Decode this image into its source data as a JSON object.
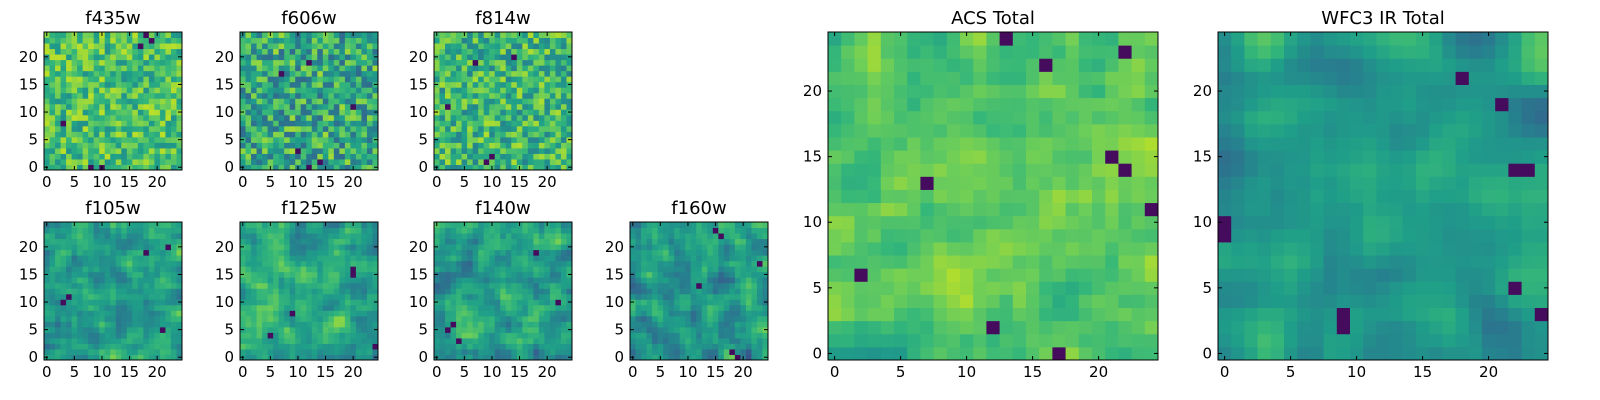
{
  "colors": {
    "colormap": "viridis",
    "background": "#ffffff",
    "frame": "#000000"
  },
  "chart_data": [
    {
      "type": "heatmap",
      "title": "f435w",
      "grid": false,
      "xlim": [
        -0.5,
        24.5
      ],
      "ylim": [
        -0.5,
        24.5
      ],
      "xticks": [
        "0",
        "5",
        "10",
        "15",
        "20"
      ],
      "yticks": [
        "0",
        "5",
        "10",
        "15",
        "20"
      ],
      "size": 25,
      "mean": 0.7,
      "spread": 0.2,
      "smooth": 0,
      "seed": 11,
      "dark_spots": [
        [
          19,
          23
        ],
        [
          18,
          24
        ],
        [
          17,
          22
        ],
        [
          3,
          8
        ],
        [
          10,
          0
        ],
        [
          8,
          0
        ]
      ]
    },
    {
      "type": "heatmap",
      "title": "f606w",
      "grid": false,
      "xlim": [
        -0.5,
        24.5
      ],
      "ylim": [
        -0.5,
        24.5
      ],
      "xticks": [
        "0",
        "5",
        "10",
        "15",
        "20"
      ],
      "yticks": [
        "0",
        "5",
        "10",
        "15",
        "20"
      ],
      "size": 25,
      "mean": 0.6,
      "spread": 0.26,
      "smooth": 0,
      "seed": 23,
      "dark_spots": [
        [
          10,
          3
        ],
        [
          12,
          19
        ],
        [
          7,
          17
        ],
        [
          14,
          1
        ],
        [
          12,
          0
        ],
        [
          20,
          11
        ]
      ]
    },
    {
      "type": "heatmap",
      "title": "f814w",
      "grid": false,
      "xlim": [
        -0.5,
        24.5
      ],
      "ylim": [
        -0.5,
        24.5
      ],
      "xticks": [
        "0",
        "5",
        "10",
        "15",
        "20"
      ],
      "yticks": [
        "0",
        "5",
        "10",
        "15",
        "20"
      ],
      "size": 25,
      "mean": 0.66,
      "spread": 0.22,
      "smooth": 0,
      "seed": 37,
      "dark_spots": [
        [
          10,
          2
        ],
        [
          9,
          1
        ],
        [
          2,
          11
        ],
        [
          7,
          19
        ],
        [
          14,
          20
        ]
      ]
    },
    {
      "type": "heatmap",
      "title": "f105w",
      "grid": false,
      "xlim": [
        -0.5,
        24.5
      ],
      "ylim": [
        -0.5,
        24.5
      ],
      "xticks": [
        "0",
        "5",
        "10",
        "15",
        "20"
      ],
      "yticks": [
        "0",
        "5",
        "10",
        "15",
        "20"
      ],
      "size": 25,
      "mean": 0.58,
      "spread": 0.22,
      "smooth": 1,
      "seed": 41,
      "dark_spots": [
        [
          3,
          10
        ],
        [
          4,
          11
        ],
        [
          18,
          19
        ],
        [
          21,
          5
        ],
        [
          22,
          20
        ]
      ]
    },
    {
      "type": "heatmap",
      "title": "f125w",
      "grid": false,
      "xlim": [
        -0.5,
        24.5
      ],
      "ylim": [
        -0.5,
        24.5
      ],
      "xticks": [
        "0",
        "5",
        "10",
        "15",
        "20"
      ],
      "yticks": [
        "0",
        "5",
        "10",
        "15",
        "20"
      ],
      "size": 25,
      "mean": 0.58,
      "spread": 0.24,
      "smooth": 1,
      "seed": 53,
      "dark_spots": [
        [
          20,
          15
        ],
        [
          20,
          16
        ],
        [
          9,
          8
        ],
        [
          24,
          2
        ],
        [
          5,
          4
        ]
      ]
    },
    {
      "type": "heatmap",
      "title": "f140w",
      "grid": false,
      "xlim": [
        -0.5,
        24.5
      ],
      "ylim": [
        -0.5,
        24.5
      ],
      "xticks": [
        "0",
        "5",
        "10",
        "15",
        "20"
      ],
      "yticks": [
        "0",
        "5",
        "10",
        "15",
        "20"
      ],
      "size": 25,
      "mean": 0.55,
      "spread": 0.24,
      "smooth": 1,
      "seed": 67,
      "dark_spots": [
        [
          3,
          6
        ],
        [
          2,
          5
        ],
        [
          22,
          10
        ],
        [
          18,
          19
        ],
        [
          4,
          3
        ]
      ]
    },
    {
      "type": "heatmap",
      "title": "f160w",
      "grid": false,
      "xlim": [
        -0.5,
        24.5
      ],
      "ylim": [
        -0.5,
        24.5
      ],
      "xticks": [
        "0",
        "5",
        "10",
        "15",
        "20"
      ],
      "yticks": [
        "0",
        "5",
        "10",
        "15",
        "20"
      ],
      "size": 25,
      "mean": 0.52,
      "spread": 0.26,
      "smooth": 1,
      "seed": 79,
      "dark_spots": [
        [
          16,
          22
        ],
        [
          15,
          23
        ],
        [
          18,
          1
        ],
        [
          19,
          0
        ],
        [
          23,
          17
        ],
        [
          12,
          13
        ]
      ]
    },
    {
      "type": "heatmap",
      "title": "ACS Total",
      "grid": false,
      "xlim": [
        -0.5,
        24.5
      ],
      "ylim": [
        -0.5,
        24.5
      ],
      "xticks": [
        "0",
        "5",
        "10",
        "15",
        "20"
      ],
      "yticks": [
        "0",
        "5",
        "10",
        "15",
        "20"
      ],
      "size": 25,
      "mean": 0.7,
      "spread": 0.18,
      "smooth": 1,
      "seed": 97,
      "dark_spots": [
        [
          13,
          24
        ],
        [
          16,
          22
        ],
        [
          22,
          23
        ],
        [
          24,
          11
        ],
        [
          7,
          13
        ],
        [
          2,
          6
        ],
        [
          12,
          2
        ],
        [
          17,
          0
        ],
        [
          21,
          15
        ],
        [
          22,
          14
        ]
      ]
    },
    {
      "type": "heatmap",
      "title": "WFC3 IR Total",
      "grid": false,
      "xlim": [
        -0.5,
        24.5
      ],
      "ylim": [
        -0.5,
        24.5
      ],
      "xticks": [
        "0",
        "5",
        "10",
        "15",
        "20"
      ],
      "yticks": [
        "0",
        "5",
        "10",
        "15",
        "20"
      ],
      "size": 25,
      "mean": 0.55,
      "spread": 0.2,
      "smooth": 2,
      "seed": 113,
      "dark_spots": [
        [
          18,
          21
        ],
        [
          21,
          19
        ],
        [
          22,
          14
        ],
        [
          23,
          14
        ],
        [
          0,
          9
        ],
        [
          0,
          10
        ],
        [
          9,
          3
        ],
        [
          9,
          2
        ],
        [
          24,
          3
        ],
        [
          22,
          5
        ]
      ]
    }
  ]
}
